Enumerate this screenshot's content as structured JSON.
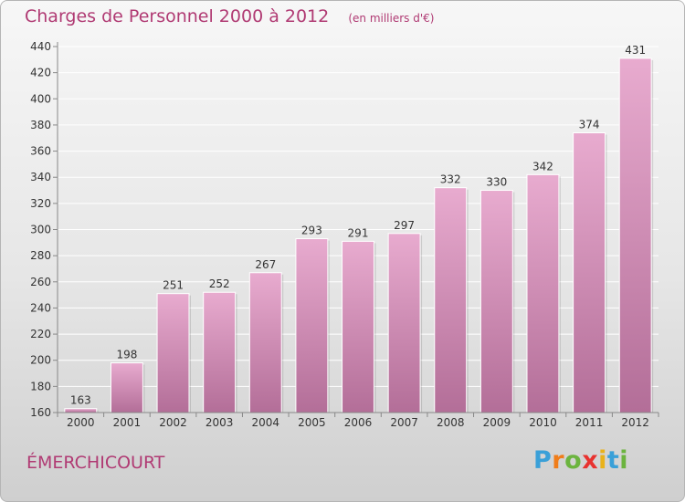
{
  "chart_data": {
    "type": "bar",
    "title": "Charges de Personnel 2000 à 2012",
    "subtitle": "(en milliers d'€)",
    "categories": [
      "2000",
      "2001",
      "2002",
      "2003",
      "2004",
      "2005",
      "2006",
      "2007",
      "2008",
      "2009",
      "2010",
      "2011",
      "2012"
    ],
    "values": [
      163,
      198,
      251,
      252,
      267,
      293,
      291,
      297,
      332,
      330,
      342,
      374,
      431
    ],
    "ylim": [
      160,
      440
    ],
    "yticks": [
      160,
      180,
      200,
      220,
      240,
      260,
      280,
      300,
      320,
      340,
      360,
      380,
      400,
      420,
      440
    ],
    "xlabel": "",
    "ylabel": "",
    "grid": true,
    "bar_color": "#c46a9a"
  },
  "place": "ÉMERCHICOURT",
  "logo": {
    "letters": [
      "P",
      "r",
      "o",
      "x",
      "i",
      "t",
      "i"
    ],
    "colors": [
      "#3aa0d8",
      "#f07d1a",
      "#6cb43f",
      "#e8322f",
      "#e9b21a",
      "#3aa0d8",
      "#6cb43f"
    ]
  }
}
